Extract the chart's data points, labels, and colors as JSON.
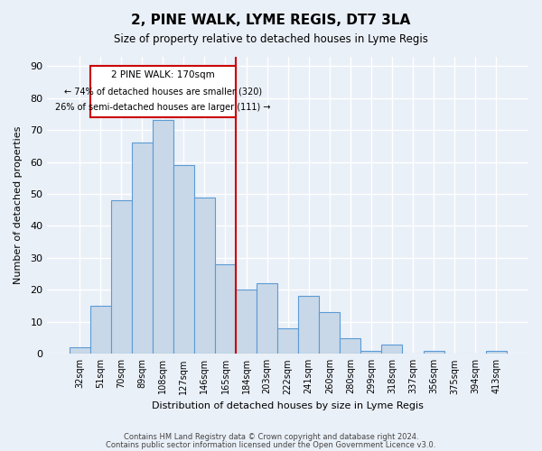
{
  "title": "2, PINE WALK, LYME REGIS, DT7 3LA",
  "subtitle": "Size of property relative to detached houses in Lyme Regis",
  "xlabel": "Distribution of detached houses by size in Lyme Regis",
  "ylabel": "Number of detached properties",
  "bar_values": [
    2,
    15,
    48,
    66,
    73,
    59,
    49,
    28,
    20,
    22,
    8,
    18,
    13,
    5,
    1,
    3,
    0,
    1,
    0,
    0,
    1
  ],
  "bar_labels": [
    "32sqm",
    "51sqm",
    "70sqm",
    "89sqm",
    "108sqm",
    "127sqm",
    "146sqm",
    "165sqm",
    "184sqm",
    "203sqm",
    "222sqm",
    "241sqm",
    "260sqm",
    "280sqm",
    "299sqm",
    "318sqm",
    "337sqm",
    "356sqm",
    "375sqm",
    "394sqm",
    "413sqm"
  ],
  "bar_color": "#c8d8e8",
  "bar_edge_color": "#5b9bd5",
  "background_color": "#eaf0f8",
  "grid_color": "#ffffff",
  "property_label": "2 PINE WALK: 170sqm",
  "annotation_line1": "← 74% of detached houses are smaller (320)",
  "annotation_line2": "26% of semi-detached houses are larger (111) →",
  "red_line_color": "#cc0000",
  "annotation_box_color": "#cc0000",
  "ylim": [
    0,
    93
  ],
  "yticks": [
    0,
    10,
    20,
    30,
    40,
    50,
    60,
    70,
    80,
    90
  ],
  "red_line_x": 7.5,
  "footer1": "Contains HM Land Registry data © Crown copyright and database right 2024.",
  "footer2": "Contains public sector information licensed under the Open Government Licence v3.0."
}
